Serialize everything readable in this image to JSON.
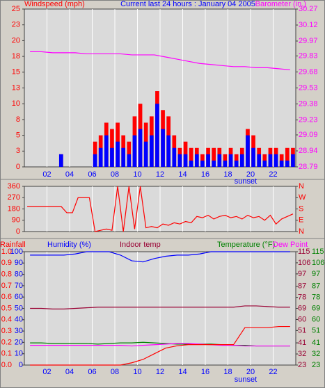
{
  "chart_data": [
    {
      "type": "combo",
      "title": "Current last 24 hours : January 04 2005",
      "annotation": "sunset",
      "grid": "x",
      "xlim": [
        0,
        24
      ],
      "xticks": [
        {
          "value": 2,
          "label": "02"
        },
        {
          "value": 4,
          "label": "04"
        },
        {
          "value": 6,
          "label": "06"
        },
        {
          "value": 8,
          "label": "08"
        },
        {
          "value": 10,
          "label": "10"
        },
        {
          "value": 12,
          "label": "12"
        },
        {
          "value": 14,
          "label": "14"
        },
        {
          "value": 16,
          "label": "16"
        },
        {
          "value": 18,
          "label": "18"
        },
        {
          "value": 20,
          "label": "20"
        },
        {
          "value": 22,
          "label": "22"
        }
      ],
      "axes": [
        {
          "title": "Windspeed (mph)",
          "color": "#ff0000",
          "side": "left",
          "lim": [
            0,
            25
          ],
          "ticks": [
            0,
            {
              "value": 2.5,
              "label": "3"
            },
            5,
            {
              "value": 7.5,
              "label": "8"
            },
            10,
            {
              "value": 12.5,
              "label": "13"
            },
            15,
            {
              "value": 17.5,
              "label": "18"
            },
            20,
            {
              "value": 22.5,
              "label": "23"
            },
            25
          ]
        },
        {
          "title": "Barometer (in.)",
          "color": "#ff00ff",
          "side": "right",
          "lim": [
            28.79,
            30.27
          ],
          "ticks": [
            28.79,
            28.94,
            29.09,
            29.23,
            29.38,
            29.53,
            29.68,
            29.83,
            29.97,
            30.12,
            30.27
          ]
        }
      ],
      "series": [
        {
          "kind": "bar",
          "axis": 0,
          "color": "#ff0000",
          "x": [
            0.25,
            0.75,
            1.25,
            1.75,
            2.25,
            2.75,
            3.25,
            3.75,
            4.25,
            4.75,
            5.25,
            5.75,
            6.25,
            6.75,
            7.25,
            7.75,
            8.25,
            8.75,
            9.25,
            9.75,
            10.25,
            10.75,
            11.25,
            11.75,
            12.25,
            12.75,
            13.25,
            13.75,
            14.25,
            14.75,
            15.25,
            15.75,
            16.25,
            16.75,
            17.25,
            17.75,
            18.25,
            18.75,
            19.25,
            19.75,
            20.25,
            20.75,
            21.25,
            21.75,
            22.25,
            22.75,
            23.25,
            23.75
          ],
          "values": [
            0,
            0,
            0,
            0,
            0,
            0,
            2,
            0,
            0,
            0,
            0,
            0,
            4,
            5,
            7,
            6,
            7,
            5,
            4,
            8,
            10,
            7,
            8,
            12,
            9,
            8,
            5,
            3,
            4,
            3,
            3,
            2,
            3,
            3,
            3,
            2,
            3,
            2,
            3,
            6,
            5,
            3,
            2,
            3,
            3,
            2,
            3,
            3
          ]
        },
        {
          "kind": "bar",
          "axis": 0,
          "color": "#0000ff",
          "x": [
            0.25,
            0.75,
            1.25,
            1.75,
            2.25,
            2.75,
            3.25,
            3.75,
            4.25,
            4.75,
            5.25,
            5.75,
            6.25,
            6.75,
            7.25,
            7.75,
            8.25,
            8.75,
            9.25,
            9.75,
            10.25,
            10.75,
            11.25,
            11.75,
            12.25,
            12.75,
            13.25,
            13.75,
            14.25,
            14.75,
            15.25,
            15.75,
            16.25,
            16.75,
            17.25,
            17.75,
            18.25,
            18.75,
            19.25,
            19.75,
            20.25,
            20.75,
            21.25,
            21.75,
            22.25,
            22.75,
            23.25,
            23.75
          ],
          "values": [
            0,
            0,
            0,
            0,
            0,
            0,
            2,
            0,
            0,
            0,
            0,
            0,
            2,
            3,
            5,
            3,
            4,
            3,
            2,
            5,
            6,
            4,
            5,
            10,
            6,
            5,
            3,
            2,
            2,
            1,
            2,
            1,
            2,
            1,
            2,
            1,
            2,
            1,
            2,
            5,
            3,
            2,
            1,
            2,
            2,
            1,
            1,
            2
          ]
        },
        {
          "kind": "line",
          "axis": 1,
          "color": "#ff00ff",
          "x": [
            0.5,
            1.5,
            2.5,
            3.5,
            4.5,
            5.5,
            6.5,
            7.5,
            8.5,
            9.5,
            10.5,
            11.5,
            12.5,
            13.5,
            14.5,
            15.5,
            16.5,
            17.5,
            18.5,
            19.5,
            20.5,
            21.5,
            22.5,
            23.5
          ],
          "values": [
            29.87,
            29.87,
            29.86,
            29.86,
            29.86,
            29.85,
            29.85,
            29.85,
            29.85,
            29.84,
            29.84,
            29.84,
            29.82,
            29.8,
            29.78,
            29.76,
            29.75,
            29.74,
            29.73,
            29.73,
            29.72,
            29.72,
            29.71,
            29.7
          ]
        }
      ]
    },
    {
      "type": "line",
      "grid": "x",
      "xlim": [
        0,
        24
      ],
      "xticks": [
        {
          "value": 2,
          "label": "02"
        },
        {
          "value": 4,
          "label": "04"
        },
        {
          "value": 6,
          "label": "06"
        },
        {
          "value": 8,
          "label": "08"
        },
        {
          "value": 10,
          "label": "10"
        },
        {
          "value": 12,
          "label": "12"
        },
        {
          "value": 14,
          "label": "14"
        },
        {
          "value": 16,
          "label": "16"
        },
        {
          "value": 18,
          "label": "18"
        },
        {
          "value": 20,
          "label": "20"
        },
        {
          "value": 22,
          "label": "22"
        }
      ],
      "axes": [
        {
          "color": "#ff0000",
          "side": "left",
          "lim": [
            0,
            360
          ],
          "ticks": [
            0,
            90,
            180,
            270,
            360
          ]
        },
        {
          "color": "#ff0000",
          "side": "right",
          "lim": [
            0,
            360
          ],
          "ticks": [
            {
              "value": 0,
              "label": "N"
            },
            {
              "value": 90,
              "label": "E"
            },
            {
              "value": 180,
              "label": "S"
            },
            {
              "value": 270,
              "label": "W"
            },
            {
              "value": 360,
              "label": "N"
            }
          ]
        }
      ],
      "series": [
        {
          "kind": "line",
          "axis": 0,
          "color": "#ff0000",
          "x": [
            0.25,
            0.75,
            1.25,
            1.75,
            2.25,
            2.75,
            3.25,
            3.75,
            4.25,
            4.75,
            5.25,
            5.75,
            6.25,
            6.75,
            7.25,
            7.75,
            8.25,
            8.75,
            9.25,
            9.75,
            10.25,
            10.75,
            11.25,
            11.75,
            12.25,
            12.75,
            13.25,
            13.75,
            14.25,
            14.75,
            15.25,
            15.75,
            16.25,
            16.75,
            17.25,
            17.75,
            18.25,
            18.75,
            19.25,
            19.75,
            20.25,
            20.75,
            21.25,
            21.75,
            22.25,
            22.75,
            23.25,
            23.75
          ],
          "values": [
            200,
            200,
            200,
            200,
            200,
            200,
            200,
            150,
            150,
            270,
            270,
            270,
            0,
            10,
            20,
            10,
            360,
            0,
            360,
            20,
            360,
            30,
            40,
            30,
            60,
            50,
            70,
            60,
            80,
            70,
            120,
            110,
            130,
            100,
            120,
            130,
            110,
            120,
            100,
            130,
            110,
            120,
            90,
            130,
            60,
            100,
            120,
            140
          ]
        }
      ]
    },
    {
      "type": "line",
      "annotation": "sunset",
      "grid": "x",
      "xlim": [
        0,
        24
      ],
      "xticks": [
        {
          "value": 2,
          "label": "02"
        },
        {
          "value": 4,
          "label": "04"
        },
        {
          "value": 6,
          "label": "06"
        },
        {
          "value": 8,
          "label": "08"
        },
        {
          "value": 10,
          "label": "10"
        },
        {
          "value": 12,
          "label": "12"
        },
        {
          "value": 14,
          "label": "14"
        },
        {
          "value": 16,
          "label": "16"
        },
        {
          "value": 18,
          "label": "18"
        },
        {
          "value": 20,
          "label": "20"
        },
        {
          "value": 22,
          "label": "22"
        }
      ],
      "axes": [
        {
          "title": "Rainfall",
          "color": "#ff0000",
          "side": "left-outer",
          "lim": [
            0,
            1
          ],
          "ticks": [
            {
              "value": 0,
              "label": "0.0"
            },
            0.1,
            0.2,
            0.3,
            0.4,
            0.5,
            0.6,
            0.7,
            0.8,
            0.9,
            {
              "value": 1,
              "label": "1.0"
            }
          ]
        },
        {
          "title": "Humidity (%)",
          "color": "#0000ff",
          "side": "left-inner",
          "lim": [
            0,
            100
          ],
          "ticks": [
            0,
            10,
            20,
            30,
            40,
            50,
            60,
            70,
            80,
            90,
            100
          ]
        },
        {
          "title": "Indoor temp",
          "color": "#990033",
          "side": "right-inner",
          "lim": [
            23,
            115
          ],
          "ticks": [
            23,
            32,
            41,
            51,
            60,
            69,
            78,
            87,
            97,
            106,
            115
          ]
        },
        {
          "title": "Temperature (°F)",
          "color": "#008000",
          "side": "right-outer",
          "lim": [
            23,
            115
          ],
          "ticks": [
            23,
            32,
            41,
            51,
            60,
            69,
            78,
            87,
            97,
            106,
            115
          ]
        }
      ],
      "series": [
        {
          "kind": "line",
          "axis": 1,
          "color": "#0000ff",
          "x": [
            0.5,
            1.5,
            2.5,
            3.5,
            4.5,
            5.5,
            6.5,
            7.5,
            8.5,
            9.5,
            10.5,
            11.5,
            12.5,
            13.5,
            14.5,
            15.5,
            16.5,
            17.5,
            18.5,
            19.5,
            20.5,
            21.5,
            22.5,
            23.5
          ],
          "values": [
            97,
            97,
            97,
            97,
            98,
            100,
            100,
            100,
            97,
            92,
            91,
            94,
            96,
            97,
            97,
            98,
            100,
            100,
            100,
            100,
            100,
            100,
            100,
            100
          ]
        },
        {
          "kind": "line",
          "axis": 2,
          "color": "#990033",
          "x": [
            0.5,
            1.5,
            2.5,
            3.5,
            4.5,
            5.5,
            6.5,
            7.5,
            8.5,
            9.5,
            10.5,
            11.5,
            12.5,
            13.5,
            14.5,
            15.5,
            16.5,
            17.5,
            18.5,
            19.5,
            20.5,
            21.5,
            22.5,
            23.5
          ],
          "values": [
            69,
            69,
            68.5,
            68.5,
            69,
            69.5,
            70,
            70,
            70,
            70,
            70,
            70,
            70,
            70,
            70,
            70,
            70,
            70,
            70,
            71,
            71,
            70.5,
            70,
            70
          ]
        },
        {
          "kind": "line",
          "axis": 3,
          "color": "#008000",
          "x": [
            0.5,
            1.5,
            2.5,
            3.5,
            4.5,
            5.5,
            6.5,
            7.5,
            8.5,
            9.5,
            10.5,
            11.5,
            12.5,
            13.5,
            14.5,
            15.5,
            16.5,
            17.5,
            18.5,
            19.5,
            20.5,
            21.5,
            22.5,
            23.5
          ],
          "values": [
            41,
            41,
            40.5,
            40.5,
            40.5,
            40.5,
            40,
            40.5,
            41,
            41,
            41.5,
            41,
            40.5,
            40,
            40,
            40,
            40,
            39.5,
            39,
            39,
            38.5,
            38.5,
            38.5,
            38.5
          ]
        },
        {
          "name": "Dew Point",
          "kind": "line",
          "axis": 3,
          "color": "#ff00ff",
          "x": [
            0.5,
            1.5,
            2.5,
            3.5,
            4.5,
            5.5,
            6.5,
            7.5,
            8.5,
            9.5,
            10.5,
            11.5,
            12.5,
            13.5,
            14.5,
            15.5,
            16.5,
            17.5,
            18.5,
            19.5,
            20.5,
            21.5,
            22.5,
            23.5
          ],
          "values": [
            39,
            39,
            39,
            39,
            39,
            39,
            39,
            39,
            39,
            38.5,
            39,
            39.5,
            40,
            40.5,
            40.5,
            40,
            39.5,
            39,
            39,
            38.5,
            38.5,
            38.5,
            38.5,
            38.5
          ]
        },
        {
          "kind": "line",
          "axis": 0,
          "color": "#ff0000",
          "x": [
            0.5,
            1.5,
            2.5,
            3.5,
            4.5,
            5.5,
            6.5,
            7.5,
            8.5,
            9.5,
            10.5,
            11.5,
            12.5,
            13.5,
            14.5,
            15.5,
            16.5,
            17.5,
            18.5,
            19.5,
            20.5,
            21.5,
            22.5,
            23.5
          ],
          "values": [
            0,
            0,
            0,
            0,
            0,
            0,
            0,
            0,
            0,
            0.02,
            0.05,
            0.1,
            0.15,
            0.17,
            0.18,
            0.18,
            0.18,
            0.18,
            0.18,
            0.33,
            0.33,
            0.33,
            0.34,
            0.34
          ]
        }
      ]
    }
  ]
}
